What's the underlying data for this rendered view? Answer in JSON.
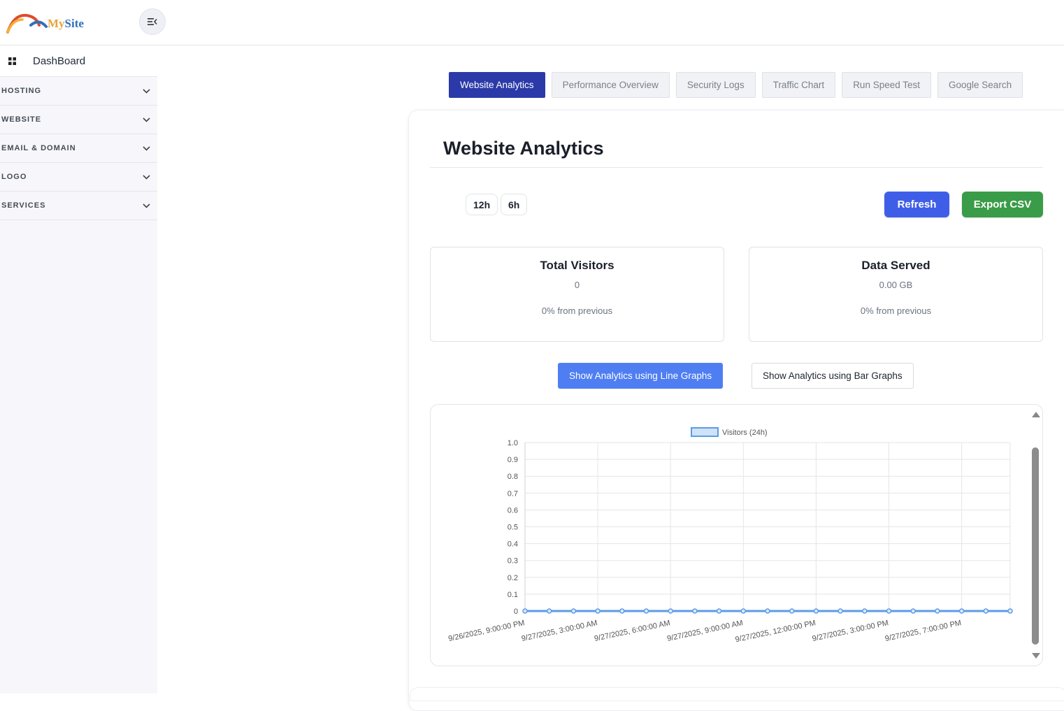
{
  "brand": {
    "name_part1": "My",
    "name_part2": "Site",
    "colors": {
      "my": "#e8a43a",
      "site": "#2f6fbf"
    }
  },
  "header": {
    "toggle_icon": "menu-collapse-icon"
  },
  "sidebar": {
    "dashboard_label": "DashBoard",
    "items": [
      {
        "label": "HOSTING"
      },
      {
        "label": "WEBSITE"
      },
      {
        "label": "EMAIL & DOMAIN"
      },
      {
        "label": "LOGO"
      },
      {
        "label": "SERVICES"
      }
    ]
  },
  "tabs": [
    {
      "label": "Website Analytics",
      "active": true
    },
    {
      "label": "Performance Overview",
      "active": false
    },
    {
      "label": "Security Logs",
      "active": false
    },
    {
      "label": "Traffic Chart",
      "active": false
    },
    {
      "label": "Run Speed Test",
      "active": false
    },
    {
      "label": "Google Search",
      "active": false
    }
  ],
  "main": {
    "title": "Website Analytics",
    "ranges": [
      "12h",
      "6h"
    ],
    "refresh_label": "Refresh",
    "export_label": "Export CSV",
    "stats": [
      {
        "title": "Total Visitors",
        "value": "0",
        "change": "0% from previous"
      },
      {
        "title": "Data Served",
        "value": "0.00 GB",
        "change": "0% from previous"
      }
    ],
    "graph_buttons": {
      "line": "Show Analytics using Line Graphs",
      "bar": "Show Analytics using Bar Graphs"
    },
    "accent_colors": {
      "tab_active": "#2b3aa8",
      "refresh": "#3f5ee8",
      "export": "#3a9c48",
      "line_btn": "#4f7ef2",
      "series": "#5b9be8"
    }
  },
  "chart_data": {
    "type": "line",
    "legend": "Visitors (24h)",
    "legend_position": "top",
    "grid": true,
    "ylim": [
      0,
      1
    ],
    "yticks": [
      "1.0",
      "0.9",
      "0.8",
      "0.7",
      "0.6",
      "0.5",
      "0.4",
      "0.3",
      "0.2",
      "0.1",
      "0"
    ],
    "xtick_labels": [
      "9/26/2025, 9:00:00 PM",
      "9/27/2025, 3:00:00 AM",
      "9/27/2025, 6:00:00 AM",
      "9/27/2025, 9:00:00 AM",
      "9/27/2025, 12:00:00 PM",
      "9/27/2025, 3:00:00 PM",
      "9/27/2025, 7:00:00 PM"
    ],
    "series": [
      {
        "name": "Visitors (24h)",
        "values": [
          0,
          0,
          0,
          0,
          0,
          0,
          0,
          0,
          0,
          0,
          0,
          0,
          0,
          0,
          0,
          0,
          0,
          0,
          0,
          0,
          0
        ]
      }
    ]
  }
}
